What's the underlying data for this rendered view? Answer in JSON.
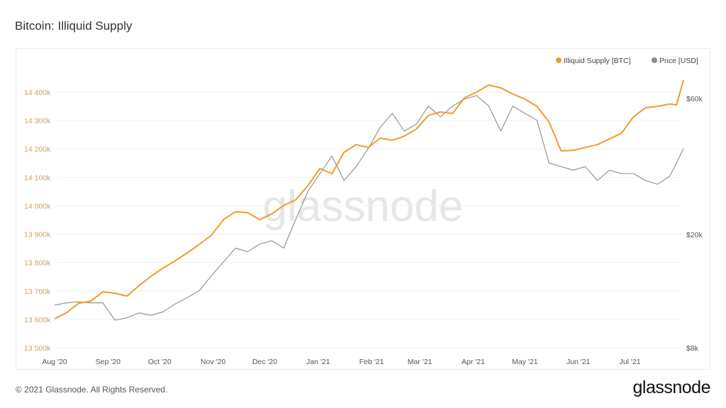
{
  "header": {
    "title": "Bitcoin: Illiquid Supply"
  },
  "footer": {
    "copyright": "© 2021 Glassnode. All Rights Reserved.",
    "logo": "glassnode"
  },
  "watermark": "glassnode",
  "colors": {
    "illiquid": "#f09c2b",
    "price": "#8c8c8c",
    "grid": "#f1f1f1"
  },
  "chart_data": {
    "type": "line",
    "title": "Bitcoin: Illiquid Supply",
    "legend": {
      "placement": "top-right",
      "entries": [
        "Illiquid Supply [BTC]",
        "Price [USD]"
      ]
    },
    "x_ticks": [
      "Aug '20",
      "Sep '20",
      "Oct '20",
      "Nov '20",
      "Dec '20",
      "Jan '21",
      "Feb '21",
      "Mar '21",
      "Apr '21",
      "May '21",
      "Jun '21",
      "Jul '21"
    ],
    "x_tick_dates": [
      "2020-08-01",
      "2020-09-01",
      "2020-10-01",
      "2020-11-01",
      "2020-12-01",
      "2021-01-01",
      "2021-02-01",
      "2021-03-01",
      "2021-04-01",
      "2021-05-01",
      "2021-06-01",
      "2021-07-01"
    ],
    "y_left": {
      "label": "Illiquid Supply [BTC]",
      "ylim": [
        13500000,
        14400000
      ],
      "ticks": [
        13500000,
        13600000,
        13700000,
        13800000,
        13900000,
        14000000,
        14100000,
        14200000,
        14300000,
        14400000
      ],
      "tick_labels": [
        "13 500k",
        "13 600k",
        "13 700k",
        "13 800k",
        "13 900k",
        "14 000k",
        "14 100k",
        "14 200k",
        "14 300k",
        "14 400k"
      ]
    },
    "y_right": {
      "label": "Price [USD]",
      "scale": "log",
      "ylim": [
        8000,
        60000
      ],
      "ticks": [
        8000,
        20000,
        60000
      ],
      "tick_labels": [
        "$8k",
        "$20k",
        "$60k"
      ]
    },
    "grid": true,
    "start_date": "2020-08-01",
    "day_offsets": [
      0,
      7,
      14,
      21,
      28,
      35,
      42,
      49,
      56,
      63,
      70,
      77,
      84,
      91,
      98,
      105,
      112,
      119,
      126,
      133,
      140,
      147,
      154,
      161,
      168,
      175,
      182,
      189,
      196,
      203,
      210,
      217,
      224,
      231,
      238,
      245,
      252,
      259,
      266,
      273,
      280,
      287,
      294,
      301,
      308,
      315,
      322,
      329,
      336,
      343,
      350,
      357,
      361,
      365
    ],
    "series": [
      {
        "name": "Illiquid Supply [BTC]",
        "axis": "left",
        "values": [
          13602000,
          13624000,
          13657000,
          13664000,
          13697000,
          13692000,
          13682000,
          13719000,
          13752000,
          13781000,
          13806000,
          13834000,
          13864000,
          13896000,
          13951000,
          13979000,
          13976000,
          13951000,
          13971000,
          14001000,
          14021000,
          14071000,
          14131000,
          14113000,
          14188000,
          14215000,
          14205000,
          14238000,
          14230000,
          14245000,
          14270000,
          14318000,
          14330000,
          14325000,
          14380000,
          14400000,
          14425000,
          14415000,
          14393000,
          14375000,
          14350000,
          14295000,
          14193000,
          14195000,
          14205000,
          14215000,
          14235000,
          14255000,
          14313000,
          14345000,
          14350000,
          14358000,
          14355000,
          14442000
        ]
      },
      {
        "name": "Price [USD]",
        "axis": "right",
        "values": [
          11300,
          11500,
          11600,
          11500,
          11500,
          10000,
          10200,
          10600,
          10400,
          10700,
          11400,
          12000,
          12700,
          14300,
          16000,
          17900,
          17400,
          18500,
          19000,
          17900,
          22600,
          28300,
          32700,
          37700,
          30900,
          34600,
          40000,
          47500,
          53200,
          46100,
          48800,
          56400,
          51700,
          56400,
          59700,
          61400,
          56400,
          46100,
          56400,
          53200,
          50300,
          35600,
          34600,
          33600,
          34600,
          30900,
          33600,
          32700,
          32700,
          30900,
          30000,
          32000,
          35600,
          40000
        ]
      }
    ]
  }
}
